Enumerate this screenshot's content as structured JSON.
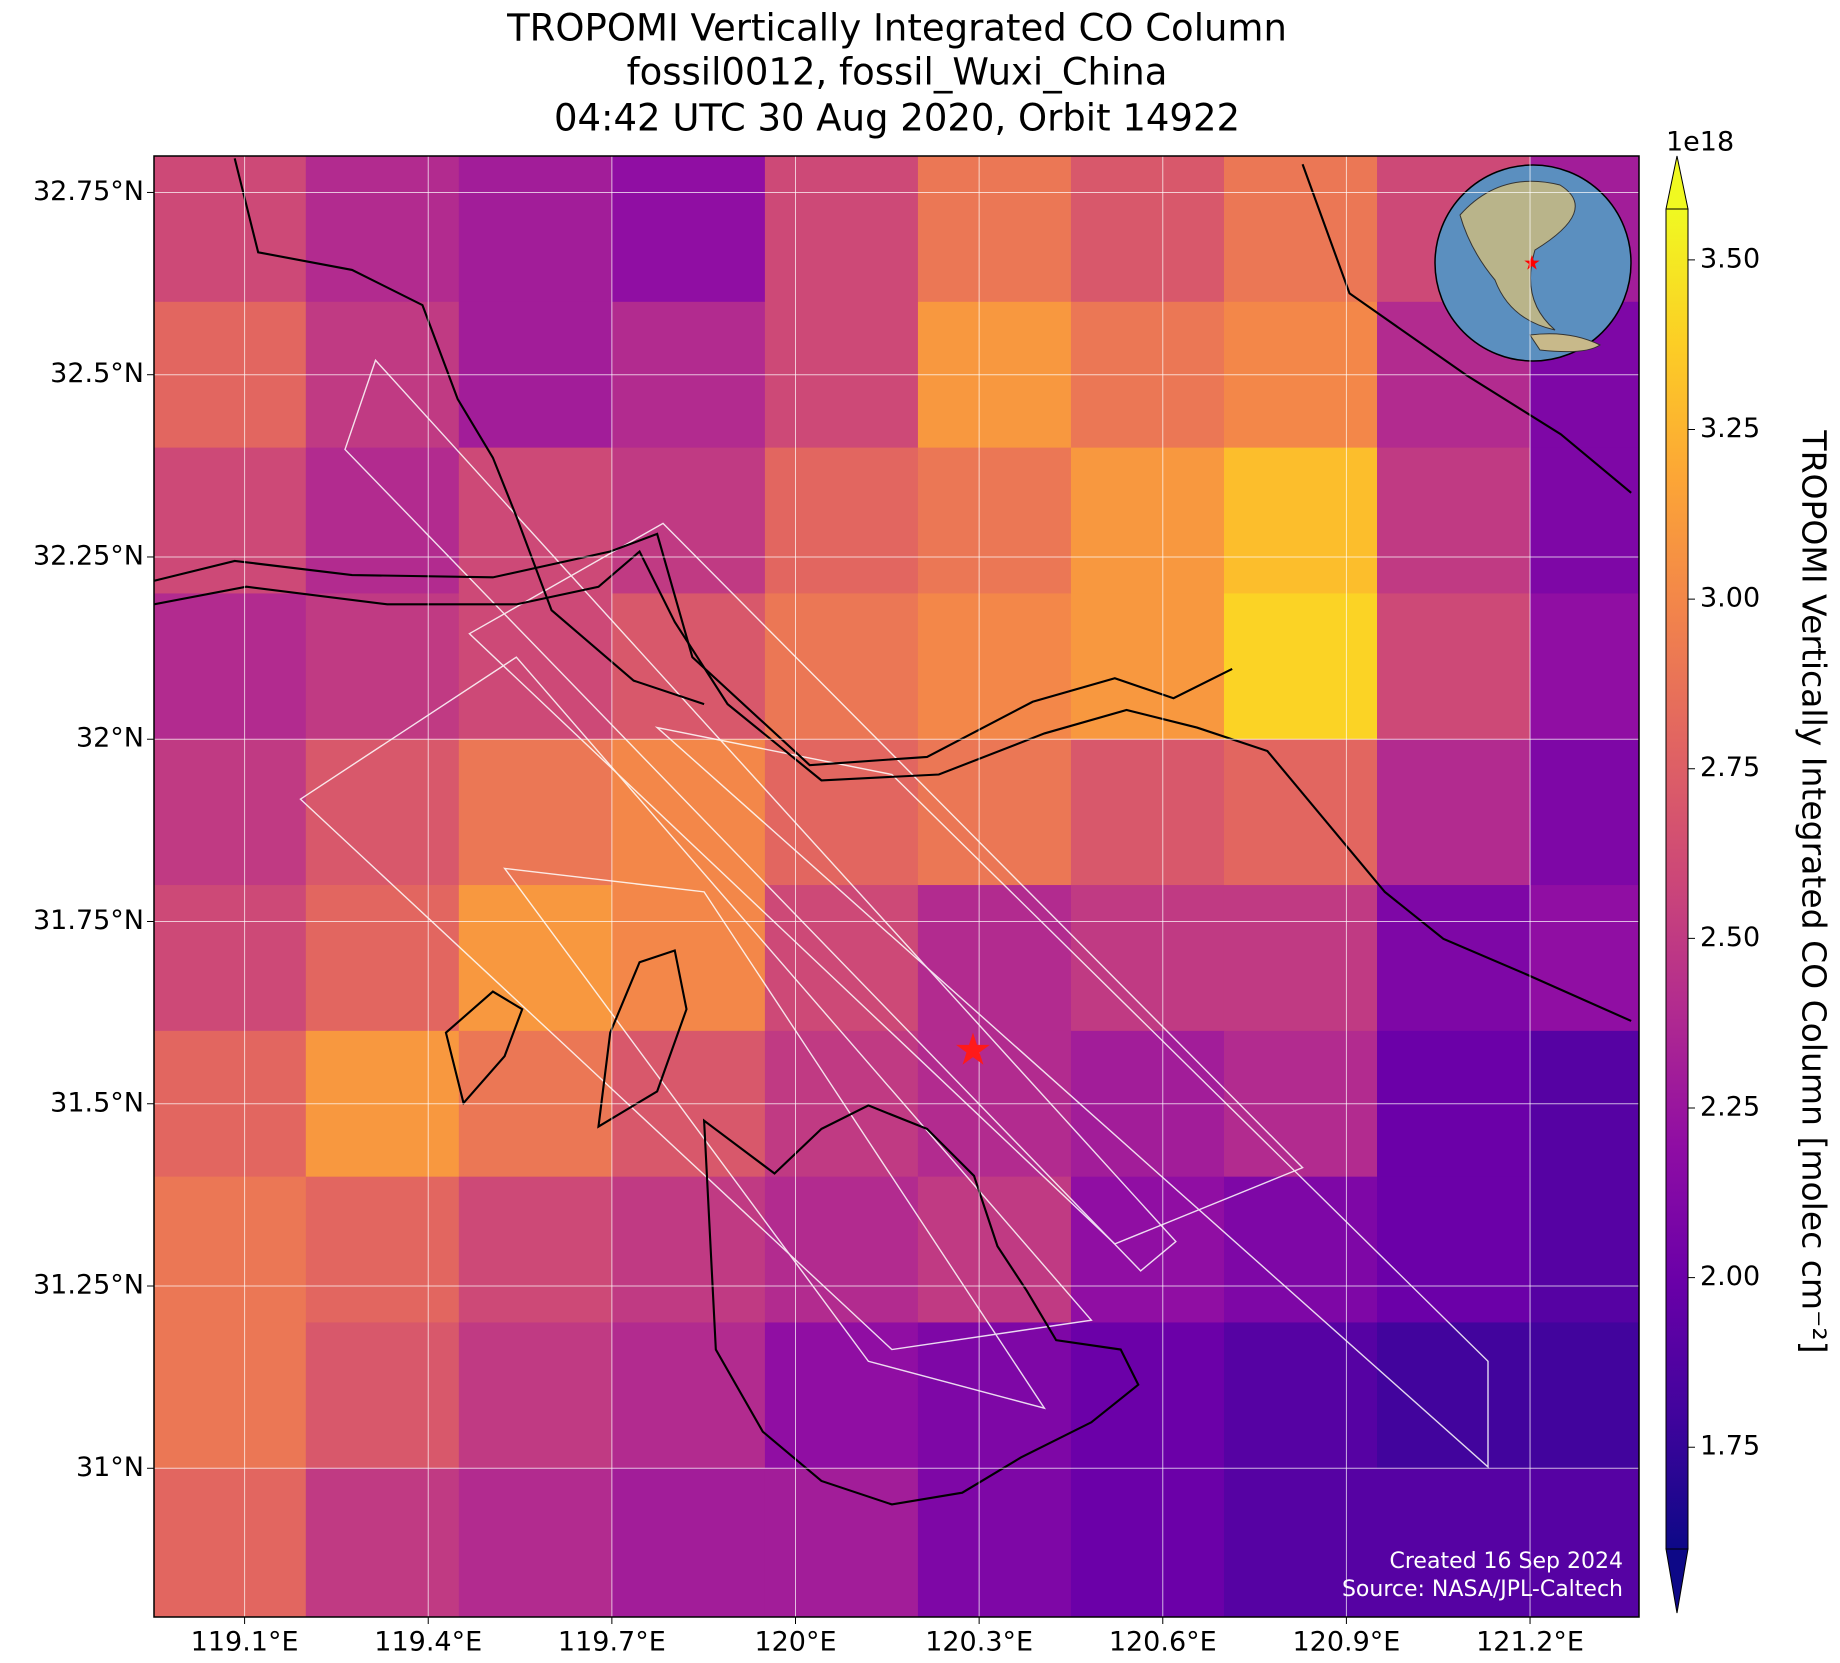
{
  "chart_data": {
    "type": "heatmap",
    "title_lines": [
      "TROPOMI Vertically Integrated CO Column",
      "fossil0012, fossil_Wuxi_China",
      "04:42 UTC 30 Aug 2020, Orbit 14922"
    ],
    "colorbar_label": "TROPOMI Vertically Integrated CO Column [molec cm⁻²]",
    "colorbar_exponent": "1e18",
    "annotations": [
      "Created 16 Sep 2024",
      "Source: NASA/JPL-Caltech"
    ],
    "colormap": "plasma",
    "xlim": [
      118.952,
      121.378
    ],
    "ylim": [
      30.796,
      32.8
    ],
    "xticks": [
      {
        "value": 119.1,
        "label": "119.1°E"
      },
      {
        "value": 119.4,
        "label": "119.4°E"
      },
      {
        "value": 119.7,
        "label": "119.7°E"
      },
      {
        "value": 120,
        "label": "120°E"
      },
      {
        "value": 120.3,
        "label": "120.3°E"
      },
      {
        "value": 120.6,
        "label": "120.6°E"
      },
      {
        "value": 120.9,
        "label": "120.9°E"
      },
      {
        "value": 121.2,
        "label": "121.2°E"
      }
    ],
    "yticks": [
      {
        "value": 32.75,
        "label": "32.75°N"
      },
      {
        "value": 32.5,
        "label": "32.5°N"
      },
      {
        "value": 32.25,
        "label": "32.25°N"
      },
      {
        "value": 32,
        "label": "32°N"
      },
      {
        "value": 31.75,
        "label": "31.75°N"
      },
      {
        "value": 31.5,
        "label": "31.5°N"
      },
      {
        "value": 31.25,
        "label": "31.25°N"
      },
      {
        "value": 31,
        "label": "31°N"
      }
    ],
    "clim": [
      1.6,
      3.575
    ],
    "cticks": [
      {
        "value": 1.75,
        "label": "1.75"
      },
      {
        "value": 2,
        "label": "2.00"
      },
      {
        "value": 2.25,
        "label": "2.25"
      },
      {
        "value": 2.5,
        "label": "2.50"
      },
      {
        "value": 2.75,
        "label": "2.75"
      },
      {
        "value": 3,
        "label": "3.00"
      },
      {
        "value": 3.25,
        "label": "3.25"
      },
      {
        "value": 3.5,
        "label": "3.50"
      }
    ],
    "grid": true,
    "x_edges": [
      118.952,
      119.2,
      119.45,
      119.7,
      119.95,
      120.2,
      120.45,
      120.7,
      120.95,
      121.2,
      121.378
    ],
    "y_edges": [
      32.8,
      32.6,
      32.4,
      32.2,
      32.0,
      31.8,
      31.6,
      31.4,
      31.2,
      31.0,
      30.796
    ],
    "values": [
      [
        2.6,
        2.4,
        2.3,
        2.2,
        2.6,
        2.9,
        2.7,
        2.9,
        2.6,
        2.3
      ],
      [
        2.8,
        2.5,
        2.3,
        2.4,
        2.6,
        3.1,
        2.9,
        3.0,
        2.4,
        2.1
      ],
      [
        2.6,
        2.4,
        2.6,
        2.5,
        2.8,
        2.9,
        3.1,
        3.3,
        2.5,
        2.1
      ],
      [
        2.4,
        2.5,
        2.6,
        2.7,
        2.9,
        3.0,
        3.1,
        3.4,
        2.6,
        2.2
      ],
      [
        2.5,
        2.7,
        2.9,
        3.0,
        2.8,
        2.9,
        2.7,
        2.8,
        2.4,
        2.1
      ],
      [
        2.6,
        2.8,
        3.1,
        3.0,
        2.6,
        2.4,
        2.5,
        2.5,
        2.1,
        2.2
      ],
      [
        2.8,
        3.1,
        2.9,
        2.7,
        2.5,
        2.4,
        2.3,
        2.4,
        2.0,
        1.9
      ],
      [
        2.9,
        2.8,
        2.6,
        2.5,
        2.4,
        2.5,
        2.2,
        2.1,
        2.0,
        1.9
      ],
      [
        2.9,
        2.7,
        2.5,
        2.4,
        2.2,
        2.1,
        2.0,
        1.9,
        1.8,
        1.8
      ],
      [
        2.8,
        2.5,
        2.4,
        2.3,
        2.3,
        2.1,
        2.0,
        1.9,
        1.9,
        1.9
      ]
    ],
    "site": {
      "lon": 120.29,
      "lat": 31.57
    }
  }
}
